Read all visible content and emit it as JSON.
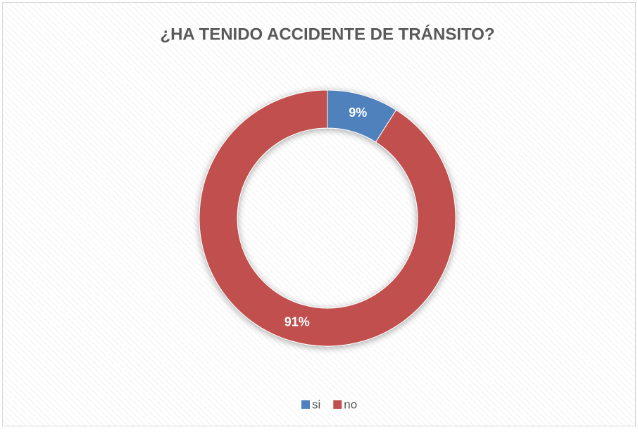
{
  "chart_data": {
    "type": "donut",
    "title": "¿HA TENIDO ACCIDENTE DE TRÁNSITO?",
    "categories": [
      "si",
      "no"
    ],
    "values": [
      9,
      91
    ],
    "value_labels": [
      "9%",
      "91%"
    ],
    "colors": [
      "#4f81bd",
      "#c0504d"
    ],
    "legend": "bottom"
  }
}
